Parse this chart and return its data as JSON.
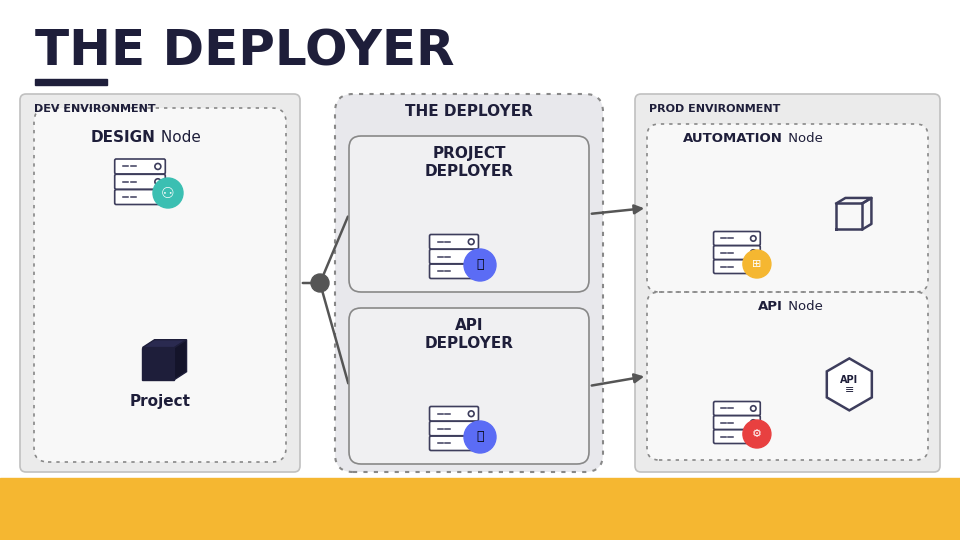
{
  "title": "THE DEPLOYER",
  "title_color": "#1e1e3a",
  "background_color": "#ffffff",
  "yellow_bar_color": "#f5b731",
  "underline_color": "#1e1e3a",
  "dark_navy": "#1e1e3a",
  "mid_navy": "#3d3d5c",
  "gray_border": "#aaaaaa",
  "deployer_outer_bg": "#e4e4e8",
  "deployer_inner_bg": "#f0f0f2",
  "env_bg": "#ebebeb",
  "dashed_inner_bg": "#f8f8f8",
  "white": "#ffffff",
  "teal_color": "#3bbfb2",
  "blue_color": "#5b6cf5",
  "yellow_circle_color": "#f5b731",
  "red_circle_color": "#e84040",
  "arrow_color": "#555555",
  "connector_dot_color": "#555555",
  "dev_env_label": "DEV ENVIRONMENT",
  "deployer_label": "THE DEPLOYER",
  "prod_env_label": "PROD ENVIRONMENT",
  "design_node_label_bold": "DESIGN",
  "design_node_label_regular": " Node",
  "project_label": "Project",
  "proj_deployer_label_line1": "PROJECT",
  "proj_deployer_label_line2": "DEPLOYER",
  "api_deployer_label_line1": "API",
  "api_deployer_label_line2": "DEPLOYER",
  "automation_node_bold": "AUTOMATION",
  "automation_node_regular": " Node",
  "api_node_bold": "API",
  "api_node_regular": " Node"
}
